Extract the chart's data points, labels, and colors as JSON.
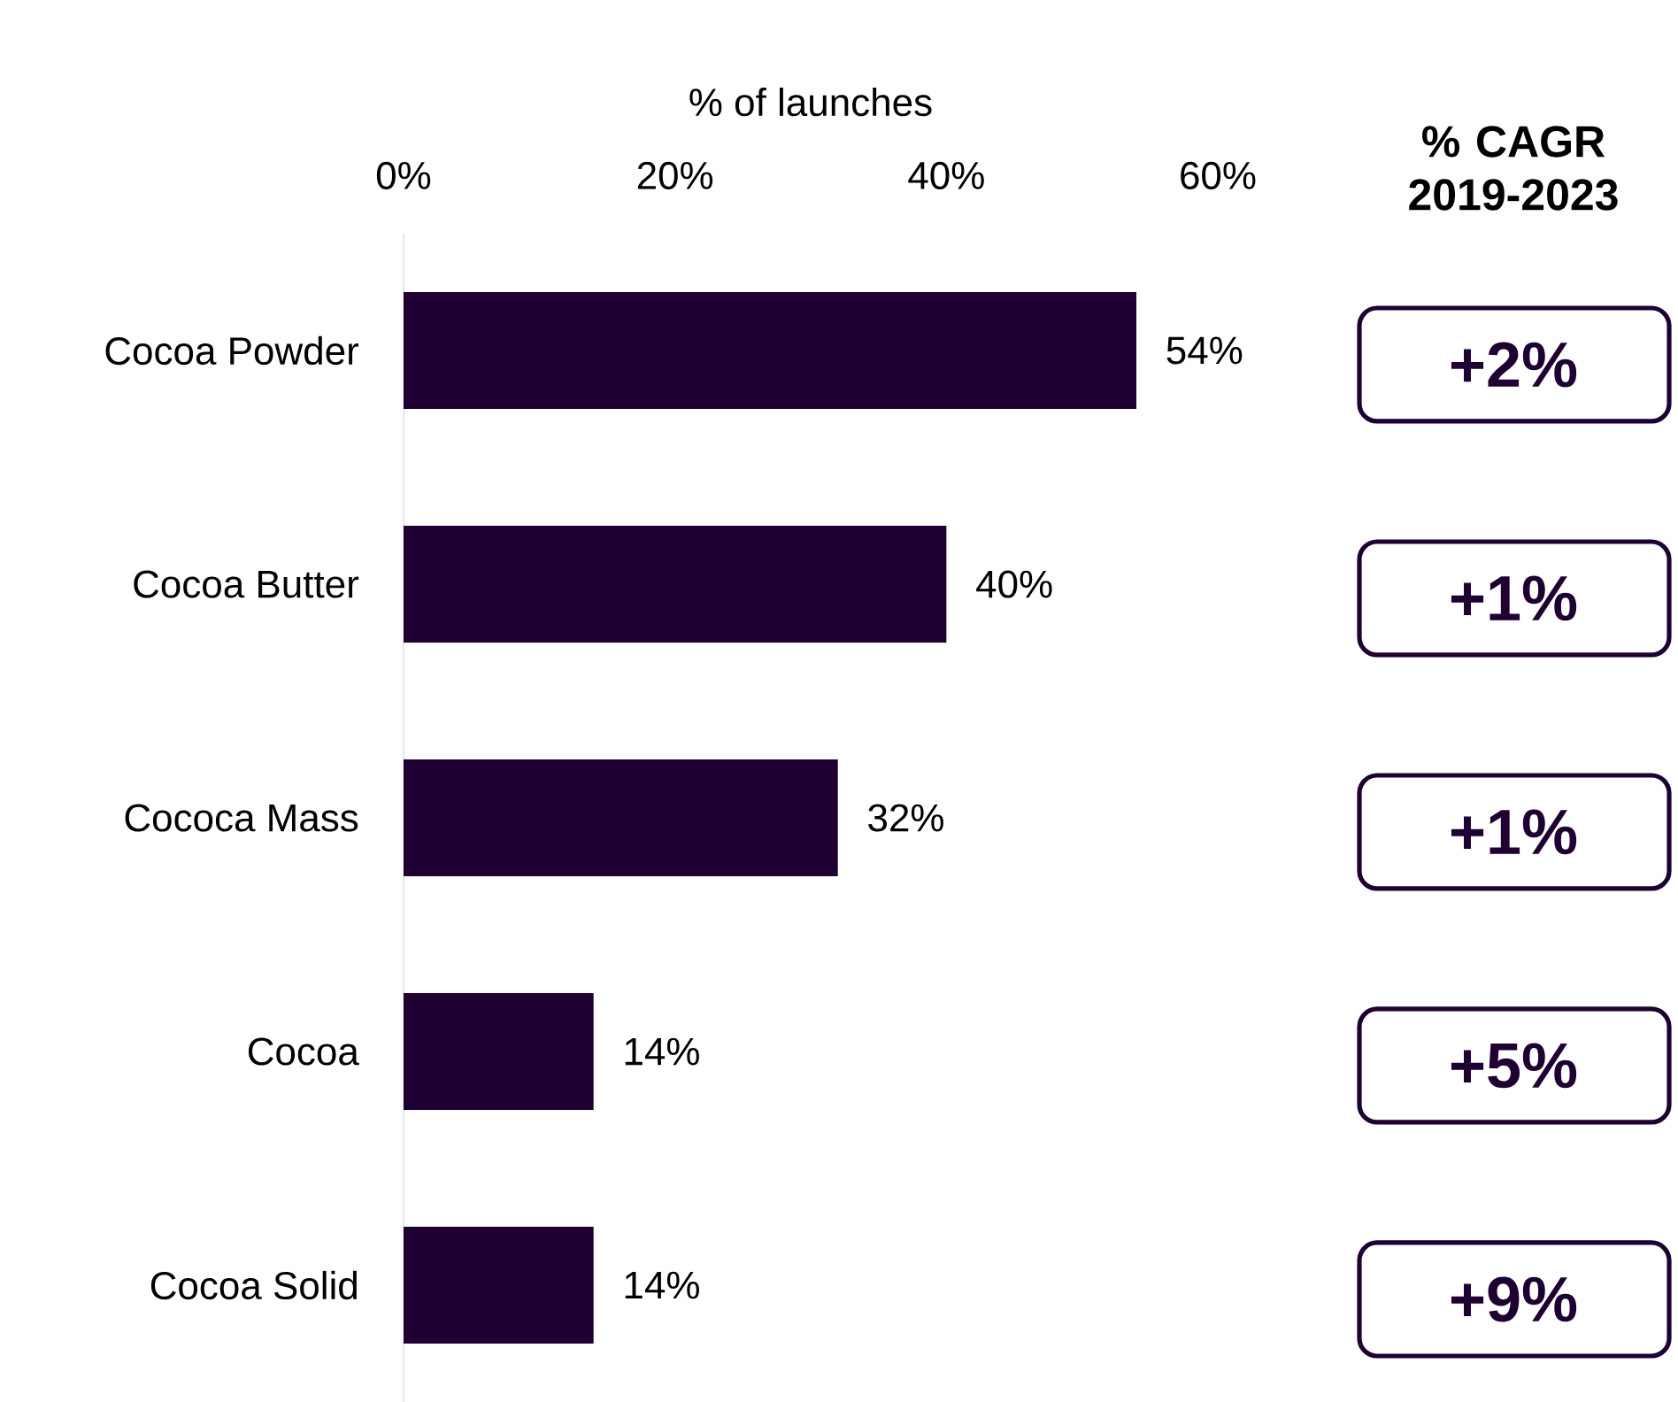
{
  "chart_data": {
    "type": "bar",
    "orientation": "horizontal",
    "xlabel": "% of launches",
    "categories": [
      "Cocoa Powder",
      "Cocoa Butter",
      "Cococa Mass",
      "Cocoa",
      "Cocoa Solid"
    ],
    "values": [
      54,
      40,
      32,
      14,
      14
    ],
    "value_labels": [
      "54%",
      "40%",
      "32%",
      "14%",
      "14%"
    ],
    "color": "#1f0033",
    "xlim": [
      0,
      60
    ],
    "xticks": [
      {
        "value": 0,
        "label": "0%"
      },
      {
        "value": 20,
        "label": "20%"
      },
      {
        "value": 40,
        "label": "40%"
      },
      {
        "value": 60,
        "label": "60%"
      }
    ],
    "annotations": [
      "% CAGR 2019-2023",
      "+2%",
      "+1%",
      "+1%",
      "+5%",
      "+9%"
    ]
  }
}
